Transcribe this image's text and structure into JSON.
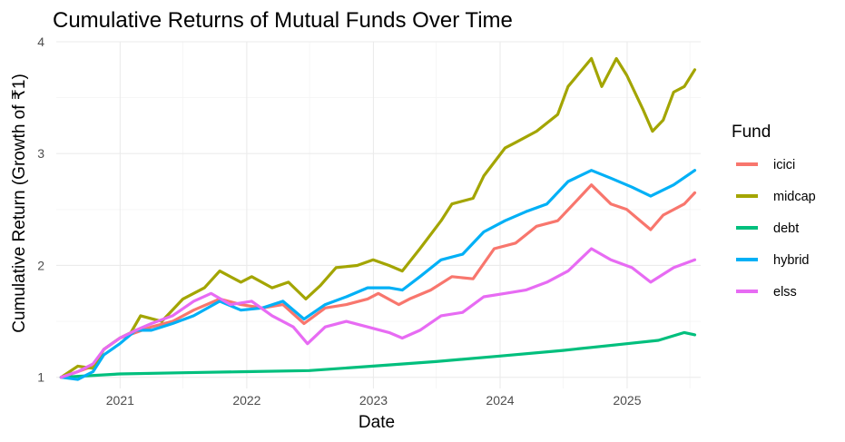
{
  "chart_data": {
    "type": "line",
    "title": "Cumulative Returns of Mutual Funds Over Time",
    "xlabel": "Date",
    "ylabel": "Cumulative Return (Growth of ₹1)",
    "x_ticks": [
      "2021",
      "2022",
      "2023",
      "2024",
      "2025"
    ],
    "y_ticks": [
      1,
      2,
      3,
      4
    ],
    "xlim": [
      "2020-07-01",
      "2025-08-01"
    ],
    "ylim": [
      0.9,
      4.0
    ],
    "grid": true,
    "legend": {
      "title": "Fund",
      "position": "right"
    },
    "series": [
      {
        "name": "icici",
        "color": "#f8766d",
        "points": [
          [
            "2020-07-15",
            1.0
          ],
          [
            "2020-09-01",
            1.05
          ],
          [
            "2020-10-15",
            1.1
          ],
          [
            "2020-11-15",
            1.25
          ],
          [
            "2020-12-31",
            1.35
          ],
          [
            "2021-02-15",
            1.4
          ],
          [
            "2021-04-01",
            1.45
          ],
          [
            "2021-06-01",
            1.5
          ],
          [
            "2021-08-01",
            1.6
          ],
          [
            "2021-10-15",
            1.7
          ],
          [
            "2021-12-15",
            1.65
          ],
          [
            "2022-02-15",
            1.62
          ],
          [
            "2022-04-15",
            1.65
          ],
          [
            "2022-06-15",
            1.48
          ],
          [
            "2022-08-15",
            1.62
          ],
          [
            "2022-10-15",
            1.65
          ],
          [
            "2022-12-15",
            1.7
          ],
          [
            "2023-01-15",
            1.75
          ],
          [
            "2023-03-15",
            1.65
          ],
          [
            "2023-04-15",
            1.7
          ],
          [
            "2023-06-15",
            1.78
          ],
          [
            "2023-08-15",
            1.9
          ],
          [
            "2023-10-15",
            1.88
          ],
          [
            "2023-12-15",
            2.15
          ],
          [
            "2024-02-15",
            2.2
          ],
          [
            "2024-04-15",
            2.35
          ],
          [
            "2024-06-15",
            2.4
          ],
          [
            "2024-08-15",
            2.6
          ],
          [
            "2024-09-20",
            2.72
          ],
          [
            "2024-11-15",
            2.55
          ],
          [
            "2024-12-31",
            2.5
          ],
          [
            "2025-02-15",
            2.38
          ],
          [
            "2025-03-10",
            2.32
          ],
          [
            "2025-04-15",
            2.45
          ],
          [
            "2025-06-15",
            2.55
          ],
          [
            "2025-07-15",
            2.65
          ]
        ]
      },
      {
        "name": "midcap",
        "color": "#a3a500",
        "points": [
          [
            "2020-07-15",
            1.0
          ],
          [
            "2020-09-01",
            1.1
          ],
          [
            "2020-10-15",
            1.08
          ],
          [
            "2020-11-15",
            1.25
          ],
          [
            "2020-12-31",
            1.35
          ],
          [
            "2021-02-01",
            1.4
          ],
          [
            "2021-03-01",
            1.55
          ],
          [
            "2021-05-01",
            1.5
          ],
          [
            "2021-07-01",
            1.7
          ],
          [
            "2021-09-01",
            1.8
          ],
          [
            "2021-10-15",
            1.95
          ],
          [
            "2021-12-15",
            1.85
          ],
          [
            "2022-01-15",
            1.9
          ],
          [
            "2022-03-15",
            1.8
          ],
          [
            "2022-05-01",
            1.85
          ],
          [
            "2022-06-20",
            1.7
          ],
          [
            "2022-08-01",
            1.82
          ],
          [
            "2022-09-15",
            1.98
          ],
          [
            "2022-11-15",
            2.0
          ],
          [
            "2022-12-31",
            2.05
          ],
          [
            "2023-02-15",
            2.0
          ],
          [
            "2023-03-25",
            1.95
          ],
          [
            "2023-05-15",
            2.15
          ],
          [
            "2023-07-15",
            2.4
          ],
          [
            "2023-08-15",
            2.55
          ],
          [
            "2023-10-15",
            2.6
          ],
          [
            "2023-11-15",
            2.8
          ],
          [
            "2024-01-15",
            3.05
          ],
          [
            "2024-02-15",
            3.1
          ],
          [
            "2024-04-15",
            3.2
          ],
          [
            "2024-06-15",
            3.35
          ],
          [
            "2024-07-15",
            3.6
          ],
          [
            "2024-09-20",
            3.85
          ],
          [
            "2024-10-20",
            3.6
          ],
          [
            "2024-12-01",
            3.85
          ],
          [
            "2024-12-31",
            3.7
          ],
          [
            "2025-02-15",
            3.4
          ],
          [
            "2025-03-15",
            3.2
          ],
          [
            "2025-04-15",
            3.3
          ],
          [
            "2025-05-15",
            3.55
          ],
          [
            "2025-06-15",
            3.6
          ],
          [
            "2025-07-15",
            3.75
          ]
        ]
      },
      {
        "name": "debt",
        "color": "#00bf7d",
        "points": [
          [
            "2020-07-15",
            1.0
          ],
          [
            "2020-12-31",
            1.03
          ],
          [
            "2021-06-30",
            1.04
          ],
          [
            "2021-12-31",
            1.05
          ],
          [
            "2022-06-30",
            1.06
          ],
          [
            "2022-12-31",
            1.1
          ],
          [
            "2023-06-30",
            1.14
          ],
          [
            "2023-12-31",
            1.19
          ],
          [
            "2024-06-30",
            1.24
          ],
          [
            "2024-12-31",
            1.3
          ],
          [
            "2025-04-01",
            1.33
          ],
          [
            "2025-06-15",
            1.4
          ],
          [
            "2025-07-15",
            1.38
          ]
        ]
      },
      {
        "name": "hybrid",
        "color": "#00b0f6",
        "points": [
          [
            "2020-07-15",
            1.0
          ],
          [
            "2020-09-01",
            0.98
          ],
          [
            "2020-10-15",
            1.05
          ],
          [
            "2020-11-15",
            1.2
          ],
          [
            "2020-12-31",
            1.3
          ],
          [
            "2021-02-15",
            1.42
          ],
          [
            "2021-04-01",
            1.42
          ],
          [
            "2021-06-01",
            1.48
          ],
          [
            "2021-08-01",
            1.55
          ],
          [
            "2021-10-15",
            1.68
          ],
          [
            "2021-12-15",
            1.6
          ],
          [
            "2022-02-15",
            1.62
          ],
          [
            "2022-04-15",
            1.68
          ],
          [
            "2022-06-15",
            1.52
          ],
          [
            "2022-08-15",
            1.65
          ],
          [
            "2022-10-15",
            1.72
          ],
          [
            "2022-12-15",
            1.8
          ],
          [
            "2023-02-15",
            1.8
          ],
          [
            "2023-03-25",
            1.78
          ],
          [
            "2023-05-15",
            1.9
          ],
          [
            "2023-07-15",
            2.05
          ],
          [
            "2023-09-15",
            2.1
          ],
          [
            "2023-11-15",
            2.3
          ],
          [
            "2024-01-15",
            2.4
          ],
          [
            "2024-03-15",
            2.48
          ],
          [
            "2024-05-15",
            2.55
          ],
          [
            "2024-07-15",
            2.75
          ],
          [
            "2024-09-20",
            2.85
          ],
          [
            "2024-11-15",
            2.78
          ],
          [
            "2025-01-15",
            2.7
          ],
          [
            "2025-03-10",
            2.62
          ],
          [
            "2025-05-15",
            2.72
          ],
          [
            "2025-07-15",
            2.85
          ]
        ]
      },
      {
        "name": "elss",
        "color": "#e76bf3",
        "points": [
          [
            "2020-07-15",
            1.0
          ],
          [
            "2020-09-01",
            1.05
          ],
          [
            "2020-10-15",
            1.12
          ],
          [
            "2020-11-15",
            1.25
          ],
          [
            "2020-12-31",
            1.35
          ],
          [
            "2021-02-15",
            1.42
          ],
          [
            "2021-04-01",
            1.48
          ],
          [
            "2021-06-01",
            1.55
          ],
          [
            "2021-08-01",
            1.68
          ],
          [
            "2021-09-20",
            1.75
          ],
          [
            "2021-11-15",
            1.65
          ],
          [
            "2022-01-15",
            1.68
          ],
          [
            "2022-03-15",
            1.55
          ],
          [
            "2022-05-15",
            1.45
          ],
          [
            "2022-06-25",
            1.3
          ],
          [
            "2022-08-15",
            1.45
          ],
          [
            "2022-10-15",
            1.5
          ],
          [
            "2022-12-15",
            1.45
          ],
          [
            "2023-02-15",
            1.4
          ],
          [
            "2023-03-25",
            1.35
          ],
          [
            "2023-05-15",
            1.42
          ],
          [
            "2023-07-15",
            1.55
          ],
          [
            "2023-09-15",
            1.58
          ],
          [
            "2023-11-15",
            1.72
          ],
          [
            "2024-01-15",
            1.75
          ],
          [
            "2024-03-15",
            1.78
          ],
          [
            "2024-05-15",
            1.85
          ],
          [
            "2024-07-15",
            1.95
          ],
          [
            "2024-09-20",
            2.15
          ],
          [
            "2024-11-15",
            2.05
          ],
          [
            "2025-01-15",
            1.98
          ],
          [
            "2025-03-10",
            1.85
          ],
          [
            "2025-05-15",
            1.98
          ],
          [
            "2025-07-15",
            2.05
          ]
        ]
      }
    ]
  }
}
